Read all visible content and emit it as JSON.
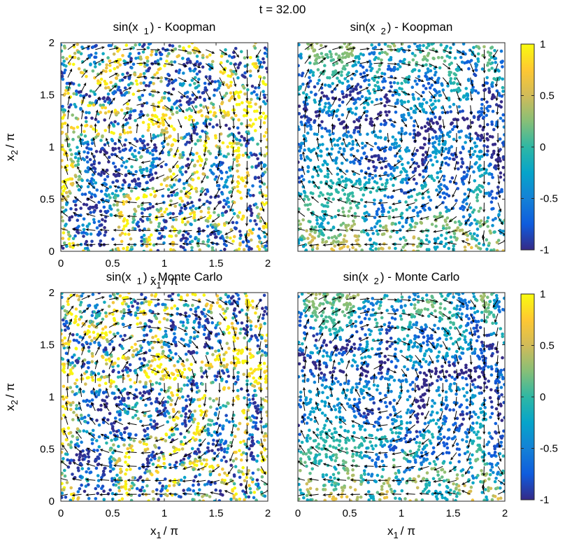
{
  "figure": {
    "title": "t = 32.00"
  },
  "colorbar": {
    "min": -1,
    "max": 1,
    "tick_labels": [
      "1",
      "0.5",
      "0",
      "-0.5",
      "-1"
    ],
    "tick_values": [
      1,
      0.5,
      0,
      -0.5,
      -1
    ],
    "colormap_stops": [
      "#352a87",
      "#0f5cdd",
      "#1481d6",
      "#06a4ca",
      "#2eb7a4",
      "#87bf77",
      "#d1bb59",
      "#fec832",
      "#f9fb0e"
    ]
  },
  "chart_data": [
    {
      "type": "scatter",
      "title": "sin(x 1) - Koopman",
      "title_main": "sin(x",
      "title_sub": "1",
      "title_rest": ") - Koopman",
      "variable": "sin(x1)",
      "method": "Koopman",
      "xlabel": "x 1 / π",
      "ylabel": "x 2 / π",
      "xlim": [
        0,
        2
      ],
      "ylim": [
        0,
        2
      ],
      "xticks": [
        "0",
        "0.5",
        "1",
        "1.5",
        "2"
      ],
      "yticks": [
        "0",
        "0.5",
        "1",
        "1.5",
        "2"
      ],
      "xtick_values": [
        0,
        0.5,
        1,
        1.5,
        2
      ],
      "ytick_values": [
        0,
        0.5,
        1,
        1.5,
        2
      ],
      "color_range": [
        -1,
        1
      ],
      "overlay": "velocity quiver arrows (black)"
    },
    {
      "type": "scatter",
      "title": "sin(x 2) - Koopman",
      "title_main": "sin(x",
      "title_sub": "2",
      "title_rest": ") - Koopman",
      "variable": "sin(x2)",
      "method": "Koopman",
      "xlabel": "",
      "ylabel": "",
      "xlim": [
        0,
        2
      ],
      "ylim": [
        0,
        2
      ],
      "xticks": [],
      "yticks": [],
      "xtick_values": [
        0,
        0.5,
        1,
        1.5,
        2
      ],
      "ytick_values": [
        0,
        0.5,
        1,
        1.5,
        2
      ],
      "color_range": [
        -1,
        1
      ],
      "overlay": "velocity quiver arrows (black)"
    },
    {
      "type": "scatter",
      "title": "sin(x 1) - Monte Carlo",
      "title_main": "sin(x",
      "title_sub": "1",
      "title_rest": ") - Monte Carlo",
      "variable": "sin(x1)",
      "method": "Monte Carlo",
      "xlabel": "x 1 / π",
      "ylabel": "x 2 / π",
      "xlim": [
        0,
        2
      ],
      "ylim": [
        0,
        2
      ],
      "xticks": [
        "0",
        "0.5",
        "1",
        "1.5",
        "2"
      ],
      "yticks": [
        "0",
        "0.5",
        "1",
        "1.5",
        "2"
      ],
      "xtick_values": [
        0,
        0.5,
        1,
        1.5,
        2
      ],
      "ytick_values": [
        0,
        0.5,
        1,
        1.5,
        2
      ],
      "color_range": [
        -1,
        1
      ],
      "overlay": "velocity quiver arrows (black)"
    },
    {
      "type": "scatter",
      "title": "sin(x 2) - Monte Carlo",
      "title_main": "sin(x",
      "title_sub": "2",
      "title_rest": ") - Monte Carlo",
      "variable": "sin(x2)",
      "method": "Monte Carlo",
      "xlabel": "x 1 / π",
      "ylabel": "",
      "xlim": [
        0,
        2
      ],
      "ylim": [
        0,
        2
      ],
      "xticks": [
        "0",
        "0.5",
        "1",
        "1.5",
        "2"
      ],
      "yticks": [],
      "xtick_values": [
        0,
        0.5,
        1,
        1.5,
        2
      ],
      "ytick_values": [
        0,
        0.5,
        1,
        1.5,
        2
      ],
      "color_range": [
        -1,
        1
      ],
      "overlay": "velocity quiver arrows (black)"
    }
  ]
}
